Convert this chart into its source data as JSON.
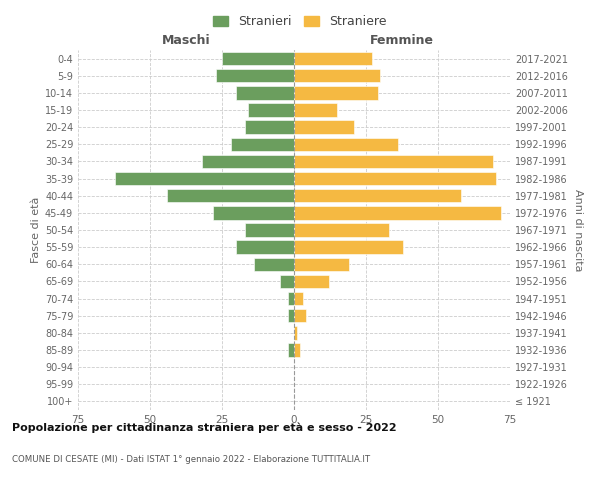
{
  "age_groups": [
    "100+",
    "95-99",
    "90-94",
    "85-89",
    "80-84",
    "75-79",
    "70-74",
    "65-69",
    "60-64",
    "55-59",
    "50-54",
    "45-49",
    "40-44",
    "35-39",
    "30-34",
    "25-29",
    "20-24",
    "15-19",
    "10-14",
    "5-9",
    "0-4"
  ],
  "birth_years": [
    "≤ 1921",
    "1922-1926",
    "1927-1931",
    "1932-1936",
    "1937-1941",
    "1942-1946",
    "1947-1951",
    "1952-1956",
    "1957-1961",
    "1962-1966",
    "1967-1971",
    "1972-1976",
    "1977-1981",
    "1982-1986",
    "1987-1991",
    "1992-1996",
    "1997-2001",
    "2002-2006",
    "2007-2011",
    "2012-2016",
    "2017-2021"
  ],
  "maschi": [
    0,
    0,
    0,
    2,
    0,
    2,
    2,
    5,
    14,
    20,
    17,
    28,
    44,
    62,
    32,
    22,
    17,
    16,
    20,
    27,
    25
  ],
  "femmine": [
    0,
    0,
    0,
    2,
    1,
    4,
    3,
    12,
    19,
    38,
    33,
    72,
    58,
    70,
    69,
    36,
    21,
    15,
    29,
    30,
    27
  ],
  "maschi_color": "#6b9e5e",
  "femmine_color": "#f5b942",
  "grid_color": "#cccccc",
  "title": "Popolazione per cittadinanza straniera per età e sesso - 2022",
  "subtitle": "COMUNE DI CESATE (MI) - Dati ISTAT 1° gennaio 2022 - Elaborazione TUTTITALIA.IT",
  "ylabel_left": "Fasce di età",
  "ylabel_right": "Anni di nascita",
  "xlabel_left": "Maschi",
  "xlabel_right": "Femmine",
  "legend_maschi": "Stranieri",
  "legend_femmine": "Straniere",
  "xlim": 75
}
